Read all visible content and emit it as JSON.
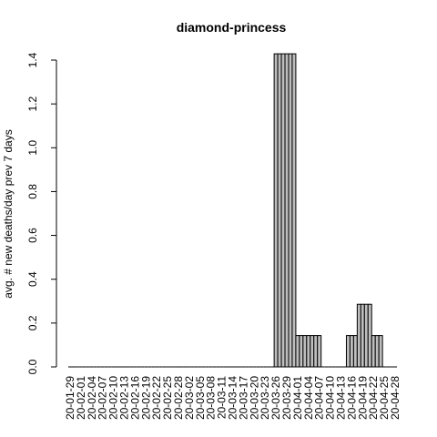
{
  "chart_data": {
    "type": "bar",
    "title": "diamond-princess",
    "ylabel": "avg. # new deaths/day prev  7  days",
    "xlabel": "",
    "ylim": [
      0,
      1.4
    ],
    "yticks": [
      "0.0",
      "0.2",
      "0.4",
      "0.6",
      "0.8",
      "1.0",
      "1.2",
      "1.4"
    ],
    "x_tick_labels": [
      "20-01-29",
      "20-02-01",
      "20-02-04",
      "20-02-07",
      "20-02-10",
      "20-02-13",
      "20-02-16",
      "20-02-19",
      "20-02-22",
      "20-02-25",
      "20-02-28",
      "20-03-02",
      "20-03-05",
      "20-03-08",
      "20-03-11",
      "20-03-14",
      "20-03-17",
      "20-03-20",
      "20-03-23",
      "20-03-26",
      "20-03-29",
      "20-04-01",
      "20-04-04",
      "20-04-07",
      "20-04-10",
      "20-04-13",
      "20-04-16",
      "20-04-19",
      "20-04-22",
      "20-04-25",
      "20-04-28"
    ],
    "categories": [
      "20-01-29",
      "20-01-30",
      "20-01-31",
      "20-02-01",
      "20-02-02",
      "20-02-03",
      "20-02-04",
      "20-02-05",
      "20-02-06",
      "20-02-07",
      "20-02-08",
      "20-02-09",
      "20-02-10",
      "20-02-11",
      "20-02-12",
      "20-02-13",
      "20-02-14",
      "20-02-15",
      "20-02-16",
      "20-02-17",
      "20-02-18",
      "20-02-19",
      "20-02-20",
      "20-02-21",
      "20-02-22",
      "20-02-23",
      "20-02-24",
      "20-02-25",
      "20-02-26",
      "20-02-27",
      "20-02-28",
      "20-02-29",
      "20-03-01",
      "20-03-02",
      "20-03-03",
      "20-03-04",
      "20-03-05",
      "20-03-06",
      "20-03-07",
      "20-03-08",
      "20-03-09",
      "20-03-10",
      "20-03-11",
      "20-03-12",
      "20-03-13",
      "20-03-14",
      "20-03-15",
      "20-03-16",
      "20-03-17",
      "20-03-18",
      "20-03-19",
      "20-03-20",
      "20-03-21",
      "20-03-22",
      "20-03-23",
      "20-03-24",
      "20-03-25",
      "20-03-26",
      "20-03-27",
      "20-03-28",
      "20-03-29",
      "20-03-30",
      "20-03-31",
      "20-04-01",
      "20-04-02",
      "20-04-03",
      "20-04-04",
      "20-04-05",
      "20-04-06",
      "20-04-07",
      "20-04-08",
      "20-04-09",
      "20-04-10",
      "20-04-11",
      "20-04-12",
      "20-04-13",
      "20-04-14",
      "20-04-15",
      "20-04-16",
      "20-04-17",
      "20-04-18",
      "20-04-19",
      "20-04-20",
      "20-04-21",
      "20-04-22",
      "20-04-23",
      "20-04-24",
      "20-04-25",
      "20-04-26",
      "20-04-27",
      "20-04-28"
    ],
    "values": [
      0,
      0,
      0,
      0,
      0,
      0,
      0,
      0,
      0,
      0,
      0,
      0,
      0,
      0,
      0,
      0,
      0,
      0,
      0,
      0,
      0,
      0,
      0,
      0,
      0,
      0,
      0,
      0,
      0,
      0,
      0,
      0,
      0,
      0,
      0,
      0,
      0,
      0,
      0,
      0,
      0,
      0,
      0,
      0,
      0,
      0,
      0,
      0,
      0,
      0,
      0,
      0,
      0,
      0,
      0,
      0,
      0,
      1.4286,
      1.4286,
      1.4286,
      1.4286,
      1.4286,
      1.4286,
      0.1429,
      0.1429,
      0.1429,
      0.1429,
      0.1429,
      0.1429,
      0.1429,
      0,
      0,
      0,
      0,
      0,
      0,
      0,
      0.1429,
      0.1429,
      0.1429,
      0.2857,
      0.2857,
      0.2857,
      0.2857,
      0.1429,
      0.1429,
      0.1429,
      0,
      0,
      0,
      0
    ],
    "grid": false,
    "legend": "none"
  }
}
